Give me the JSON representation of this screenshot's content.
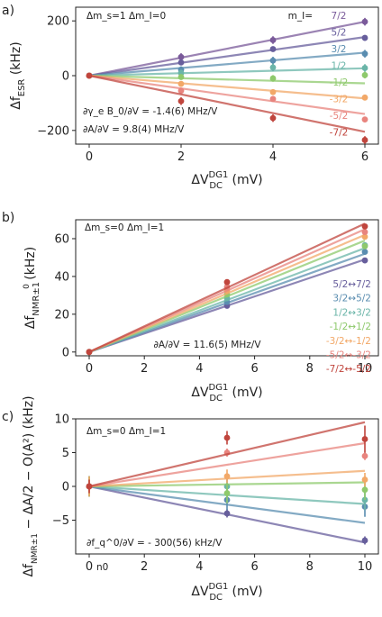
{
  "chart_data": [
    {
      "panel": "a)",
      "type": "scatter",
      "xlabel": "ΔV_DC^DG1 (mV)",
      "ylabel": "Δf_ESR (kHz)",
      "x": [
        0,
        2,
        4,
        6
      ],
      "xlim": [
        0,
        6
      ],
      "ylim": [
        -250,
        250
      ],
      "xticks": [
        0,
        2,
        4,
        6
      ],
      "yticks": [
        -200,
        0,
        200
      ],
      "top_annotation": "Δm_s=1  Δm_I=0",
      "bottom_annotations": [
        "∂γ_e B_0/∂V = -1.4(6) MHz/V",
        "∂A/∂V = 9.8(4) MHz/V"
      ],
      "label_header": "m_I=",
      "series": [
        {
          "name": "7/2",
          "color": "#7a5a9a",
          "values": [
            0,
            68,
            130,
            197
          ],
          "errors": [
            10,
            14,
            14,
            14
          ],
          "fit": [
            0,
            197
          ]
        },
        {
          "name": "5/2",
          "color": "#675e9c",
          "values": [
            0,
            48,
            97,
            138
          ],
          "errors": [
            10,
            10,
            10,
            10
          ],
          "fit": [
            0,
            141
          ]
        },
        {
          "name": "3/2",
          "color": "#5a8db0",
          "values": [
            0,
            22,
            55,
            80
          ],
          "errors": [
            10,
            12,
            14,
            14
          ],
          "fit": [
            0,
            84
          ]
        },
        {
          "name": "1/2",
          "color": "#6ab5a8",
          "values": [
            0,
            10,
            30,
            28
          ],
          "errors": [
            10,
            12,
            14,
            14
          ],
          "fit": [
            0,
            27
          ]
        },
        {
          "name": "-1/2",
          "color": "#8ec96c",
          "values": [
            0,
            -5,
            -10,
            2
          ],
          "errors": [
            10,
            10,
            12,
            12
          ],
          "fit": [
            0,
            -28
          ]
        },
        {
          "name": "-3/2",
          "color": "#f2a868",
          "values": [
            0,
            -30,
            -60,
            -80
          ],
          "errors": [
            10,
            10,
            10,
            10
          ],
          "fit": [
            0,
            -83
          ]
        },
        {
          "name": "-5/2",
          "color": "#e8847e",
          "values": [
            0,
            -55,
            -85,
            -160
          ],
          "errors": [
            10,
            10,
            10,
            10
          ],
          "fit": [
            0,
            -140
          ]
        },
        {
          "name": "-7/2",
          "color": "#c0453d",
          "values": [
            0,
            -93,
            -155,
            -235
          ],
          "errors": [
            10,
            14,
            14,
            14
          ],
          "fit": [
            0,
            -205
          ]
        }
      ]
    },
    {
      "panel": "b)",
      "type": "scatter",
      "xlabel": "ΔV_DC^DG1 (mV)",
      "ylabel": "Δf_NMR±1^0 (kHz)",
      "x": [
        0,
        5,
        10
      ],
      "xlim": [
        0,
        10
      ],
      "ylim": [
        -2,
        70
      ],
      "xticks": [
        0,
        2,
        4,
        6,
        8,
        10
      ],
      "yticks": [
        0,
        20,
        40,
        60
      ],
      "top_annotation": "Δm_s=0  Δm_I=1",
      "bottom_annotations": [
        "∂A/∂V = 11.6(5) MHz/V"
      ],
      "series": [
        {
          "name": "5/2↔7/2",
          "color": "#675e9c",
          "values": [
            0,
            24.5,
            48.5
          ],
          "fit": [
            0,
            49
          ]
        },
        {
          "name": "3/2↔5/2",
          "color": "#5a8db0",
          "values": [
            0,
            26.5,
            53.0
          ],
          "fit": [
            0,
            52
          ]
        },
        {
          "name": "1/2↔3/2",
          "color": "#6ab5a8",
          "values": [
            0,
            28.5,
            56.5
          ],
          "fit": [
            0,
            55
          ]
        },
        {
          "name": "-1/2↔1/2",
          "color": "#8ec96c",
          "values": [
            0,
            30.5,
            56.0
          ],
          "fit": [
            0,
            59
          ]
        },
        {
          "name": "-3/2↔-1/2",
          "color": "#f2a868",
          "values": [
            0,
            32.5,
            61.0
          ],
          "fit": [
            0,
            62
          ]
        },
        {
          "name": "-5/2↔-3/2",
          "color": "#e8847e",
          "values": [
            0,
            34.5,
            63.5
          ],
          "fit": [
            0,
            65
          ]
        },
        {
          "name": "-7/2↔-5/2",
          "color": "#c0453d",
          "values": [
            0,
            37.0,
            66.5
          ],
          "fit": [
            0,
            68
          ]
        }
      ]
    },
    {
      "panel": "c)",
      "type": "scatter",
      "xlabel": "ΔV_DC^DG1 (mV)",
      "ylabel": "Δf_NMR±1^0 − ΔA/2 − O(A²) (kHz)",
      "x": [
        0,
        5,
        10
      ],
      "xlim": [
        0,
        10
      ],
      "ylim": [
        -10,
        10
      ],
      "xticks": [
        0,
        2,
        4,
        6,
        8,
        10
      ],
      "yticks": [
        -5,
        0,
        5,
        10
      ],
      "xtick_extra": "n0",
      "top_annotation": "Δm_s=0  Δm_I=1",
      "bottom_annotations": [
        "∂f_q^0/∂V = - 300(56) kHz/V"
      ],
      "series": [
        {
          "name": "5/2↔7/2",
          "color": "#675e9c",
          "values": [
            0,
            -4.0,
            -8.0
          ],
          "errors": [
            1.5,
            0.6,
            0.6
          ],
          "fit": [
            0,
            -8.3
          ]
        },
        {
          "name": "3/2↔5/2",
          "color": "#5a8db0",
          "values": [
            0,
            -2.0,
            -3.0
          ],
          "errors": [
            1.5,
            1.5,
            1.5
          ],
          "fit": [
            0,
            -5.4
          ]
        },
        {
          "name": "1/2↔3/2",
          "color": "#6ab5a8",
          "values": [
            0,
            0.0,
            -2.0
          ],
          "errors": [
            1.5,
            1.5,
            1.5
          ],
          "fit": [
            0,
            -2.6
          ]
        },
        {
          "name": "-1/2↔1/2",
          "color": "#8ec96c",
          "values": [
            0,
            -1.0,
            -0.5
          ],
          "errors": [
            1.5,
            1.5,
            1.5
          ],
          "fit": [
            0,
            0.6
          ]
        },
        {
          "name": "-3/2↔-1/2",
          "color": "#f2a868",
          "values": [
            0,
            1.5,
            1.0
          ],
          "errors": [
            1.5,
            1.0,
            1.0
          ],
          "fit": [
            0,
            2.3
          ]
        },
        {
          "name": "-5/2↔-3/2",
          "color": "#e8847e",
          "values": [
            0,
            5.0,
            4.5
          ],
          "errors": [
            0.6,
            0.6,
            0.6
          ],
          "fit": [
            0,
            6.4
          ]
        },
        {
          "name": "-7/2↔-5/2",
          "color": "#c0453d",
          "values": [
            0,
            7.2,
            7.0
          ],
          "errors": [
            1.0,
            1.0,
            2.0
          ],
          "fit": [
            0,
            9.5
          ]
        }
      ]
    }
  ]
}
